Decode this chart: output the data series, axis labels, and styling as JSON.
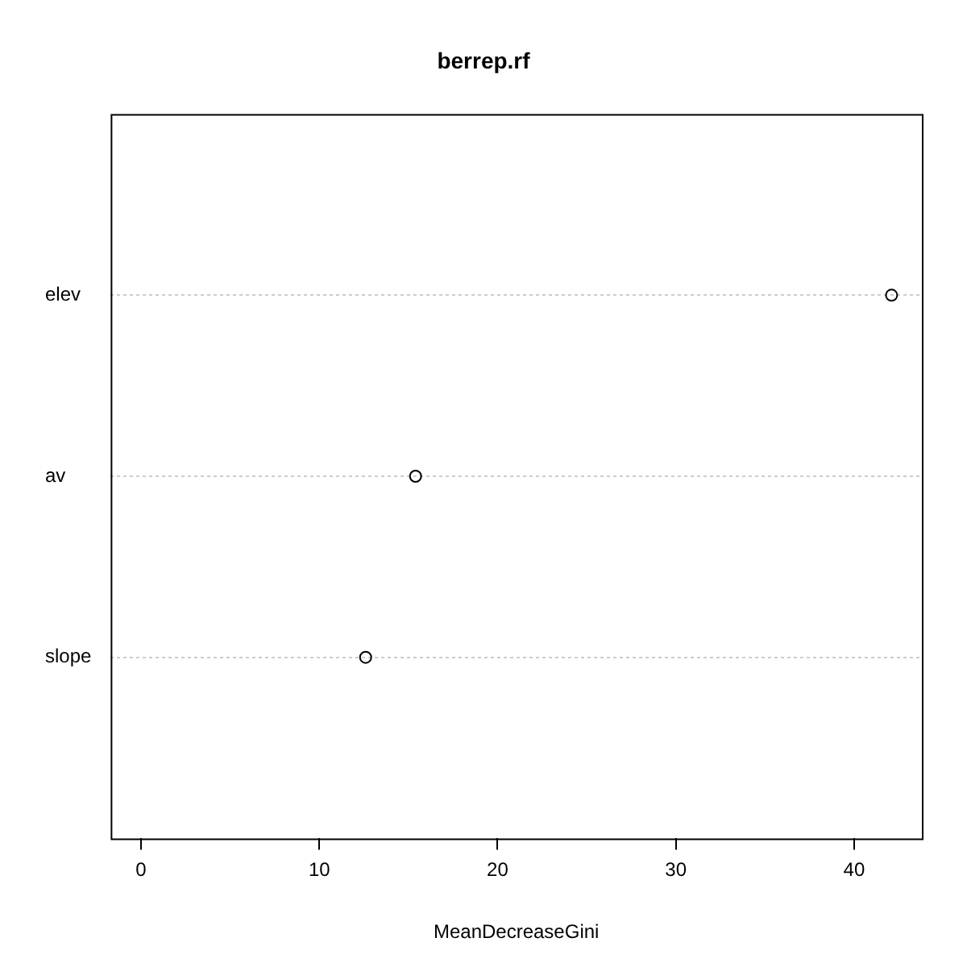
{
  "chart_data": {
    "type": "scatter",
    "title": "berrep.rf",
    "xlabel": "MeanDecreaseGini",
    "orientation": "horizontal",
    "categories": [
      "elev",
      "av",
      "slope"
    ],
    "values": [
      42.1,
      15.4,
      12.6
    ],
    "color": "#000000",
    "xlim": [
      -1.7,
      43.8
    ],
    "xticks": [
      0,
      10,
      20,
      30,
      40
    ],
    "grid": "y",
    "marker": "circle",
    "legend": false
  }
}
